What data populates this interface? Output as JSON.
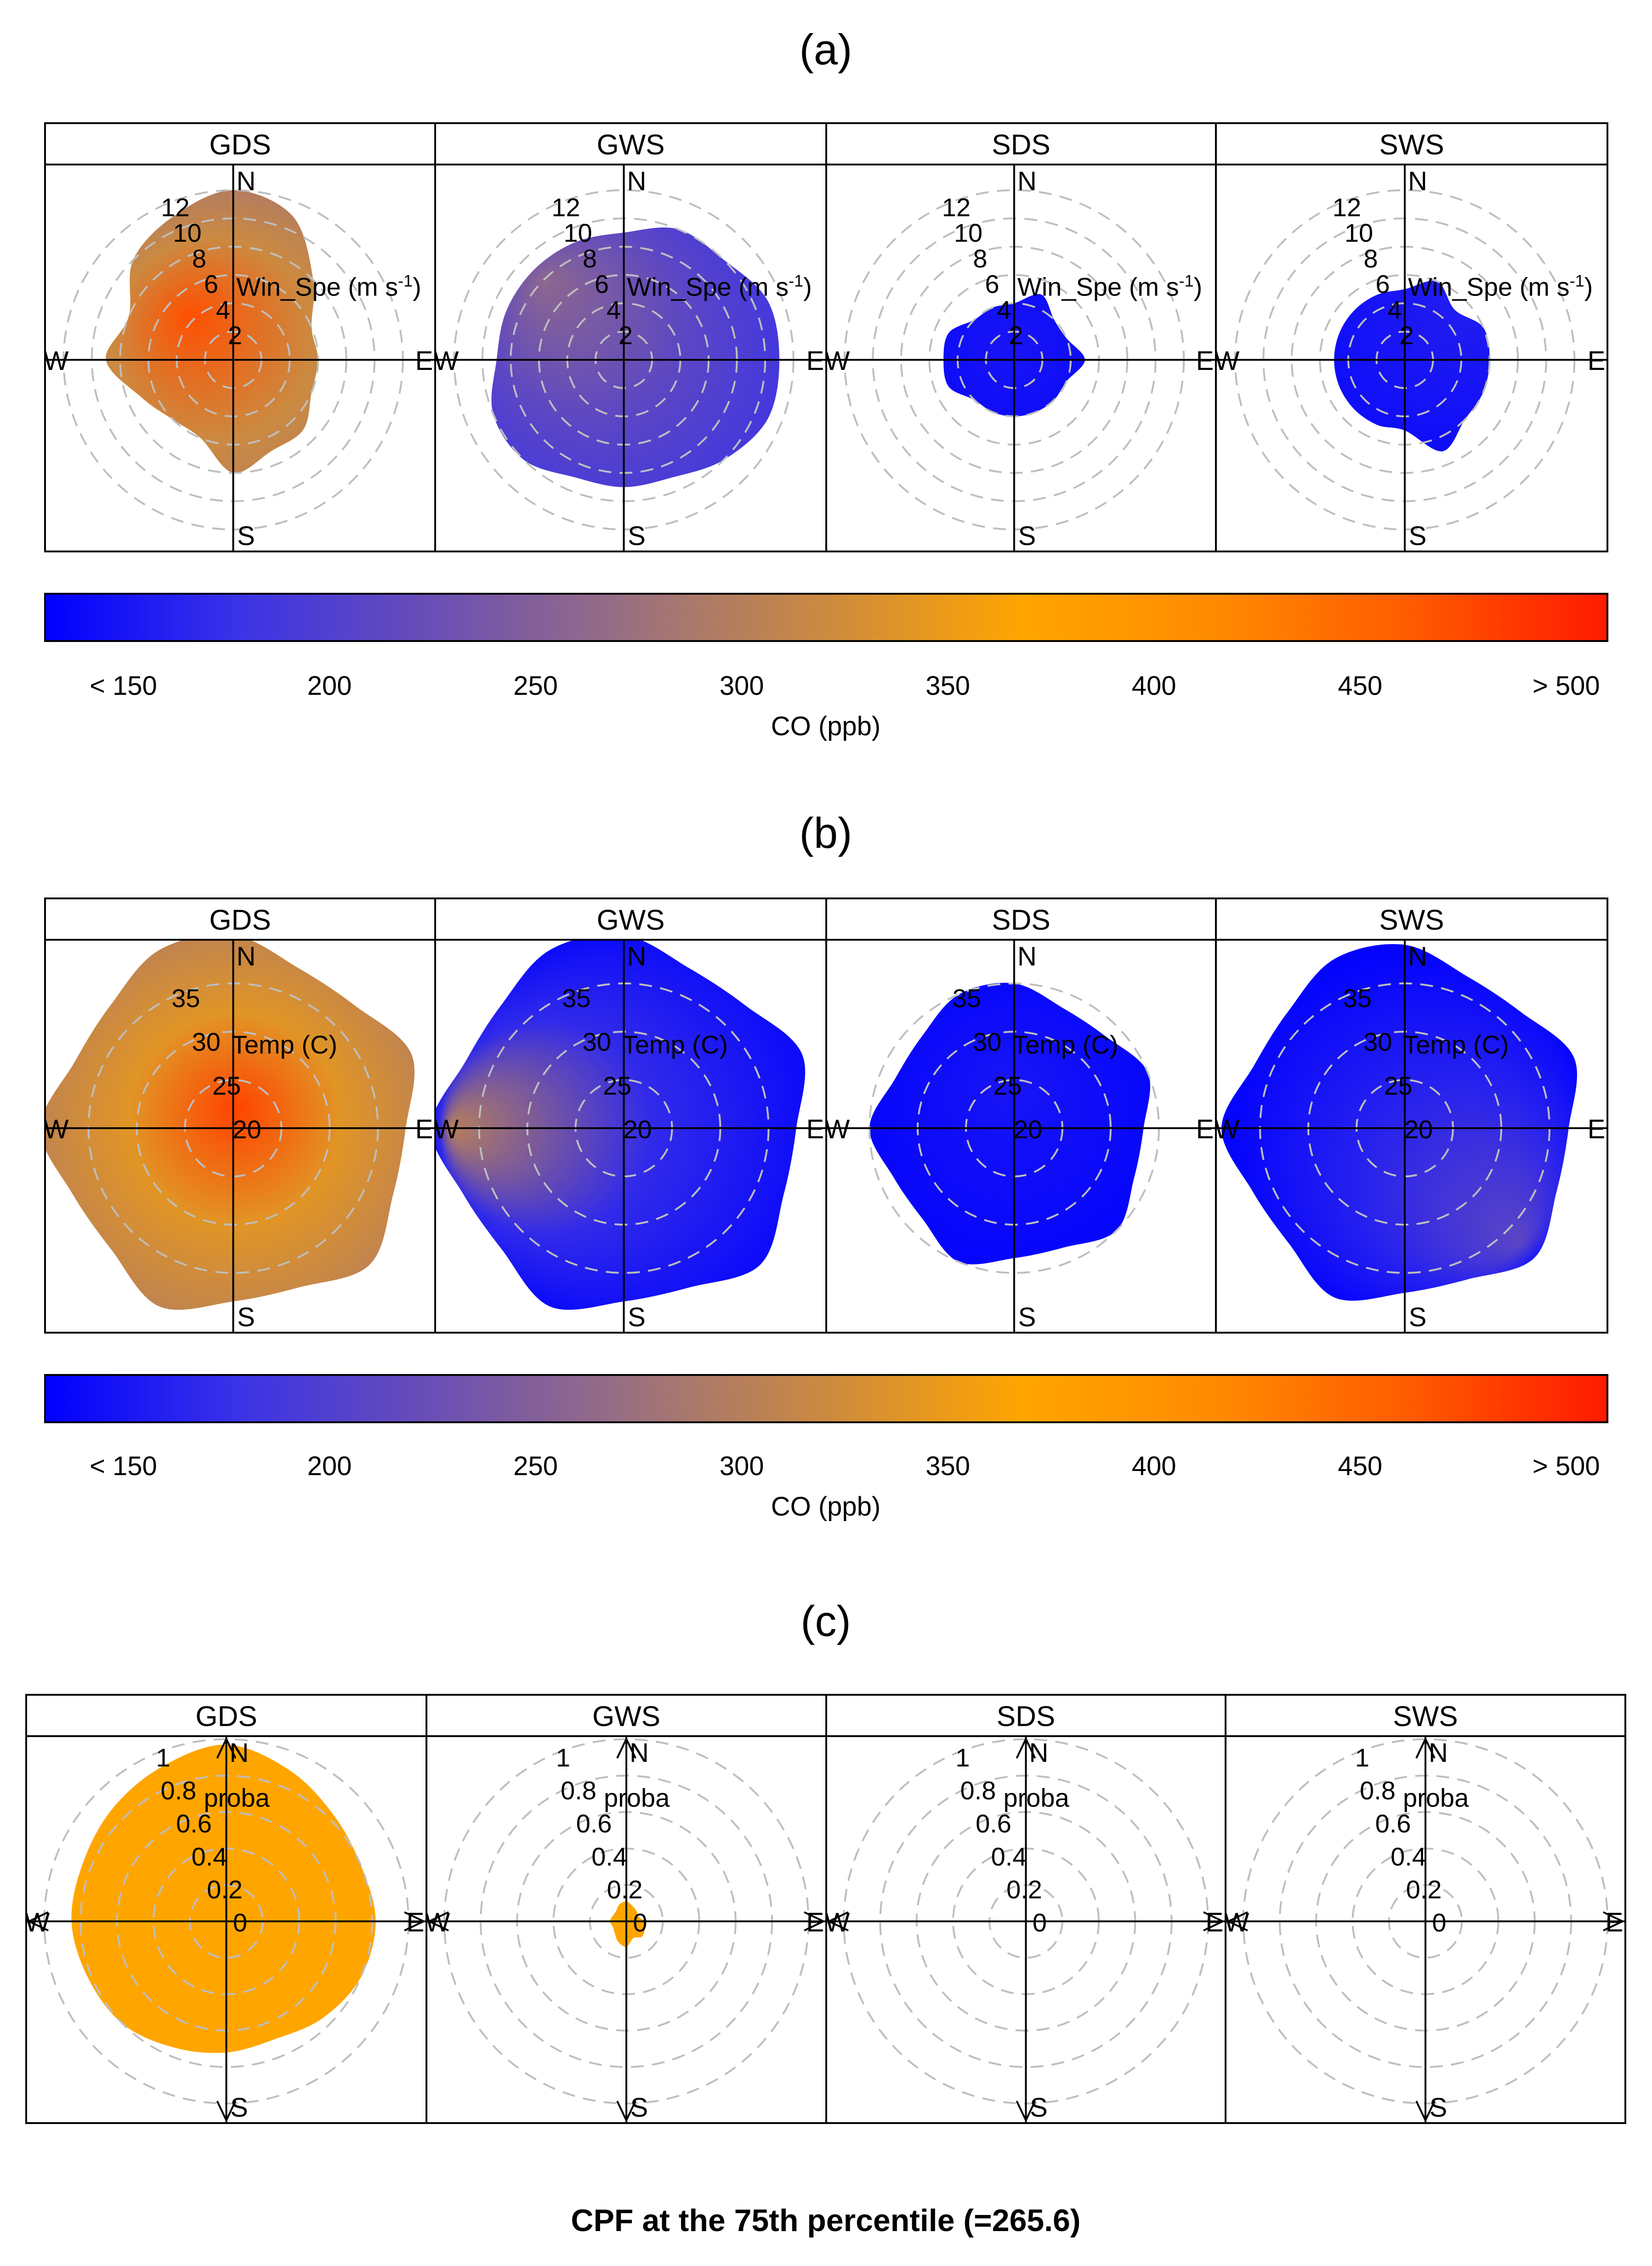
{
  "colors": {
    "scale": [
      "#0000FF",
      "#3B33E6",
      "#6B4FB4",
      "#9A7080",
      "#CC8A40",
      "#FFA500",
      "#FF8A00",
      "#FF5A00",
      "#FF1A00"
    ],
    "cpf_fill": "#FFA500",
    "frame": "#000000",
    "guide": "#BEBEBE"
  },
  "icons": {
    "arrow": "direction-arrow-icon"
  },
  "chart_data": [
    {
      "panel": "a",
      "label": "(a)",
      "type": "polar-heatmap",
      "strips": [
        "GDS",
        "GWS",
        "SDS",
        "SWS"
      ],
      "compass": [
        "N",
        "E",
        "S",
        "W"
      ],
      "radial_label": "Win_Spe (m s",
      "radial_label_sup": "-1",
      "radial_label_end": ")",
      "radial_ticks": [
        "2",
        "4",
        "6",
        "8",
        "10",
        "12"
      ],
      "radial_max": 13,
      "colorbar": {
        "title": "CO (ppb)",
        "ticks": [
          {
            "label": "< 150",
            "value": 150
          },
          {
            "label": "200",
            "value": 200
          },
          {
            "label": "250",
            "value": 250
          },
          {
            "label": "300",
            "value": 300
          },
          {
            "label": "350",
            "value": 350
          },
          {
            "label": "400",
            "value": 400
          },
          {
            "label": "450",
            "value": 450
          },
          {
            "label": "> 500",
            "value": 500
          }
        ],
        "range": [
          131,
          510
        ]
      },
      "facets": [
        {
          "name": "GDS",
          "typical_ppb": 320,
          "peak_ppb": 470,
          "peak_direction_deg": 315,
          "peak_speed": 4.5,
          "max_speed": 11,
          "extent_by_direction": [
            12,
            11,
            8,
            6,
            6,
            6,
            7,
            7,
            8,
            6,
            6,
            7,
            9,
            8,
            10,
            11
          ]
        },
        {
          "name": "GWS",
          "typical_ppb": 210,
          "peak_ppb": 260,
          "peak_direction_deg": 315,
          "peak_speed": 8,
          "max_speed": 12,
          "extent_by_direction": [
            9,
            10,
            10,
            11,
            11,
            11,
            10,
            9,
            9,
            9,
            10,
            10,
            9,
            9,
            9,
            9
          ]
        },
        {
          "name": "SDS",
          "typical_ppb": 140,
          "peak_ppb": 150,
          "peak_direction_deg": 0,
          "peak_speed": 1,
          "max_speed": 9,
          "extent_by_direction": [
            4,
            5,
            4,
            4,
            5,
            4,
            4,
            4,
            4,
            4,
            4,
            5,
            5,
            5,
            4,
            4
          ]
        },
        {
          "name": "SWS",
          "typical_ppb": 145,
          "peak_ppb": 160,
          "peak_direction_deg": 45,
          "peak_speed": 7,
          "max_speed": 9,
          "extent_by_direction": [
            5,
            6,
            5,
            6,
            6,
            6,
            6,
            7,
            5,
            5,
            5,
            5,
            5,
            5,
            5,
            5
          ]
        }
      ]
    },
    {
      "panel": "b",
      "label": "(b)",
      "type": "polar-heatmap",
      "strips": [
        "GDS",
        "GWS",
        "SDS",
        "SWS"
      ],
      "compass": [
        "N",
        "E",
        "S",
        "W"
      ],
      "radial_label": "Temp (C)",
      "radial_ticks": [
        "20",
        "25",
        "30",
        "35"
      ],
      "radial_origin": 20,
      "radial_max": 40,
      "colorbar": {
        "title": "CO (ppb)",
        "ticks": [
          {
            "label": "< 150",
            "value": 150
          },
          {
            "label": "200",
            "value": 200
          },
          {
            "label": "250",
            "value": 250
          },
          {
            "label": "300",
            "value": 300
          },
          {
            "label": "350",
            "value": 350
          },
          {
            "label": "400",
            "value": 400
          },
          {
            "label": "450",
            "value": 450
          },
          {
            "label": "> 500",
            "value": 500
          }
        ],
        "range": [
          131,
          510
        ]
      },
      "facets": [
        {
          "name": "GDS",
          "typical_ppb": 340,
          "peak_ppb": 480,
          "peak_direction_deg": 10,
          "peak_speed": 22,
          "max_speed": 40
        },
        {
          "name": "GWS",
          "typical_ppb": 170,
          "peak_ppb": 300,
          "peak_direction_deg": 270,
          "peak_speed": 38,
          "max_speed": 40
        },
        {
          "name": "SDS",
          "typical_ppb": 140,
          "peak_ppb": 150,
          "peak_direction_deg": 0,
          "peak_speed": 25,
          "max_speed": 35
        },
        {
          "name": "SWS",
          "typical_ppb": 160,
          "peak_ppb": 210,
          "peak_direction_deg": 135,
          "peak_speed": 37,
          "max_speed": 39
        }
      ]
    },
    {
      "panel": "c",
      "label": "(c)",
      "type": "polar-cpf",
      "strips": [
        "GDS",
        "GWS",
        "SDS",
        "SWS"
      ],
      "compass": [
        "N",
        "E",
        "S",
        "W"
      ],
      "radial_label": "proba",
      "radial_ticks": [
        "0",
        "0.2",
        "0.4",
        "0.6",
        "0.8",
        "1"
      ],
      "radial_max": 1.1,
      "facets": [
        {
          "name": "GDS",
          "probability": 1.0,
          "extent_by_direction": [
            0.97,
            0.9,
            0.83,
            0.8,
            0.82,
            0.8,
            0.75,
            0.7,
            0.72,
            0.75,
            0.8,
            0.82,
            0.85,
            0.85,
            0.88,
            0.92
          ]
        },
        {
          "name": "GWS",
          "probability": 1.0,
          "extent_by_direction": [
            0.11,
            0.09,
            0.08,
            0.07,
            0.1,
            0.11,
            0.12,
            0.1,
            0.14,
            0.12,
            0.09,
            0.08,
            0.09,
            0.08,
            0.08,
            0.1
          ]
        },
        {
          "name": "SDS",
          "probability": 0,
          "extent_by_direction": []
        },
        {
          "name": "SWS",
          "probability": 0,
          "extent_by_direction": []
        }
      ]
    }
  ],
  "footer": {
    "caption": "CPF at the 75th percentile (=265.6)"
  }
}
